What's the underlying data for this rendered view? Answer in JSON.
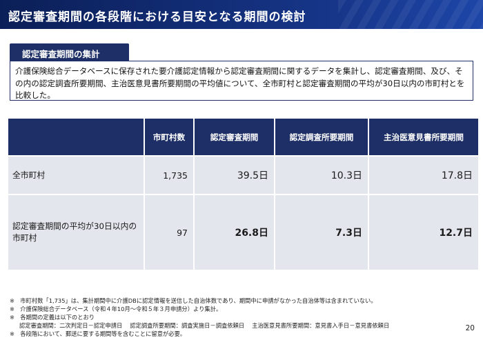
{
  "title": "認定審査期間の各段階における目安となる期間の検討",
  "section_label": "認定審査期間の集計",
  "summary": "介護保険総合データベースに保存された要介護認定情報から認定審査期間に関するデータを集計し、認定審査期間、及び、その内の認定調査所要期間、主治医意見書所要期間の平均値について、全市町村と認定審査期間の平均が30日以内の市町村とを比較した。",
  "table": {
    "headers": [
      "",
      "市町村数",
      "認定審査期間",
      "認定調査所要期間",
      "主治医意見書所要期間"
    ],
    "rows": [
      {
        "label": "全市町村",
        "count": "1,735",
        "review": "39.5日",
        "survey": "10.3日",
        "doctor": "17.8日"
      },
      {
        "label": "認定審査期間の平均が30日以内の市町村",
        "count": "97",
        "review": "26.8日",
        "survey": "7.3日",
        "doctor": "12.7日"
      }
    ]
  },
  "notes": [
    "※　市町村数「1,735」は、集計期間中に介護DBに認定情報を送信した自治体数であり、期間中に申請がなかった自治体等は含まれていない。",
    "※　介護保険総合データベース（令和４年10月～令和５年３月申請分）より集計。",
    "※　各期間の定義は以下のとおり",
    "認定審査期間：二次判定日－認定申請日　 認定調査所要期間：調査実施日－調査依頼日　 主治医意見書所要期間：意見書入手日－意見書依頼日",
    "※　各段階において、郵送に要する期間等を含むことに留意が必要。"
  ],
  "page_number": "20",
  "colors": {
    "navy": "#1d2f66",
    "title_bar": "#17368a",
    "cell": "#e4e6ed"
  }
}
